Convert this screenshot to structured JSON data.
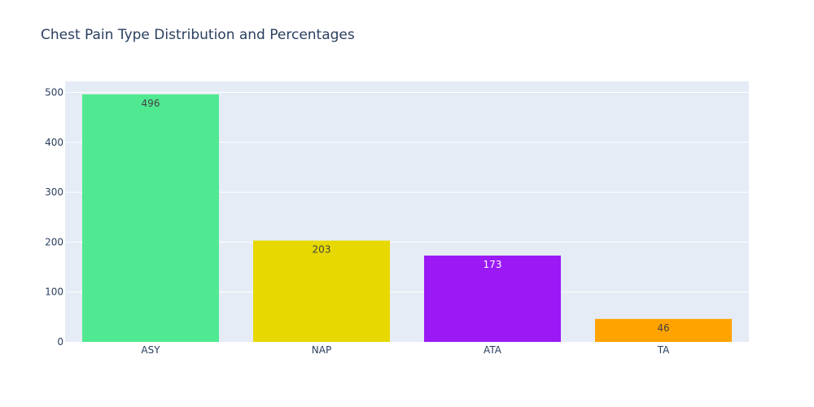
{
  "chart_data": {
    "type": "bar",
    "title": "Chest Pain Type Distribution and Percentages",
    "xlabel": "",
    "ylabel": "",
    "categories": [
      "ASY",
      "NAP",
      "ATA",
      "TA"
    ],
    "values": [
      496,
      203,
      173,
      46
    ],
    "data_labels": [
      "496",
      "203",
      "173",
      "46"
    ],
    "bar_colors": [
      "#50e991",
      "#e6d800",
      "#9b19f5",
      "#ffa300"
    ],
    "label_colors": [
      "#444444",
      "#444444",
      "#ffffff",
      "#444444"
    ],
    "ylim": [
      0,
      522
    ],
    "yticks": [
      0,
      100,
      200,
      300,
      400,
      500
    ],
    "grid": true,
    "plot_background": "#e5ecf6",
    "legend": "none"
  }
}
